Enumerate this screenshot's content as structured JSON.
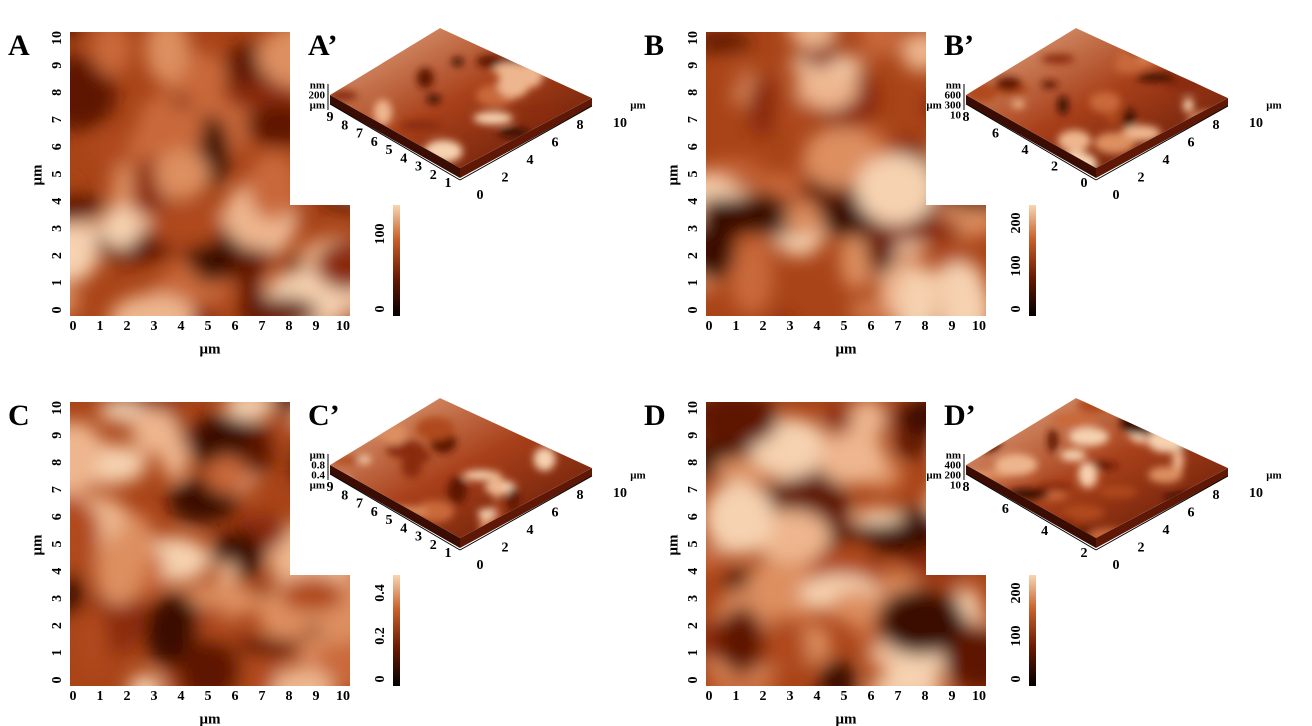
{
  "panels": [
    {
      "label": "A",
      "image": {
        "x_label": "μm",
        "y_label": "μm",
        "x_ticks": [
          "0",
          "1",
          "2",
          "3",
          "4",
          "5",
          "6",
          "7",
          "8",
          "9",
          "10"
        ],
        "y_ticks": [
          "0",
          "1",
          "2",
          "3",
          "4",
          "5",
          "6",
          "7",
          "8",
          "9",
          "10"
        ]
      },
      "colorbar": {
        "ticks": [
          "0",
          "100"
        ]
      },
      "surface": {
        "label": "A’",
        "z_axis": [
          "nm",
          "200",
          "μm"
        ],
        "depth_ticks": [
          "9",
          "8",
          "7",
          "6",
          "5",
          "4",
          "3",
          "2",
          "1"
        ],
        "width_ticks": [
          "0",
          "2",
          "4",
          "6",
          "8"
        ],
        "width_unit": "μm",
        "width_end": "10"
      }
    },
    {
      "label": "B",
      "image": {
        "x_label": "μm",
        "y_label": "μm",
        "x_ticks": [
          "0",
          "1",
          "2",
          "3",
          "4",
          "5",
          "6",
          "7",
          "8",
          "9",
          "10"
        ],
        "y_ticks": [
          "0",
          "1",
          "2",
          "3",
          "4",
          "5",
          "6",
          "7",
          "8",
          "9",
          "10"
        ]
      },
      "colorbar": {
        "ticks": [
          "0",
          "100",
          "200"
        ]
      },
      "surface": {
        "label": "B’",
        "z_axis": [
          "nm",
          "600",
          "μm 300",
          "10"
        ],
        "depth_ticks": [
          "8",
          "6",
          "4",
          "2",
          "0"
        ],
        "width_ticks": [
          "0",
          "2",
          "4",
          "6",
          "8"
        ],
        "width_unit": "μm",
        "width_end": "10"
      }
    },
    {
      "label": "C",
      "image": {
        "x_label": "μm",
        "y_label": "μm",
        "x_ticks": [
          "0",
          "1",
          "2",
          "3",
          "4",
          "5",
          "6",
          "7",
          "8",
          "9",
          "10"
        ],
        "y_ticks": [
          "0",
          "1",
          "2",
          "3",
          "4",
          "5",
          "6",
          "7",
          "8",
          "9",
          "10"
        ]
      },
      "colorbar": {
        "ticks": [
          "0",
          "0.2",
          "0.4"
        ]
      },
      "surface": {
        "label": "C’",
        "z_axis": [
          "μm",
          "0.8",
          "0.4",
          "μm"
        ],
        "depth_ticks": [
          "9",
          "8",
          "7",
          "6",
          "5",
          "4",
          "3",
          "2",
          "1"
        ],
        "width_ticks": [
          "0",
          "2",
          "4",
          "6",
          "8"
        ],
        "width_unit": "μm",
        "width_end": "10"
      }
    },
    {
      "label": "D",
      "image": {
        "x_label": "μm",
        "y_label": "μm",
        "x_ticks": [
          "0",
          "1",
          "2",
          "3",
          "4",
          "5",
          "6",
          "7",
          "8",
          "9",
          "10"
        ],
        "y_ticks": [
          "0",
          "1",
          "2",
          "3",
          "4",
          "5",
          "6",
          "7",
          "8",
          "9",
          "10"
        ]
      },
      "colorbar": {
        "ticks": [
          "0",
          "100",
          "200"
        ]
      },
      "surface": {
        "label": "D’",
        "z_axis": [
          "nm",
          "400",
          "μm 200",
          "10"
        ],
        "depth_ticks": [
          "8",
          "6",
          "4",
          "2"
        ],
        "width_ticks": [
          "0",
          "2",
          "4",
          "6",
          "8"
        ],
        "width_unit": "μm",
        "width_end": "10"
      }
    }
  ]
}
